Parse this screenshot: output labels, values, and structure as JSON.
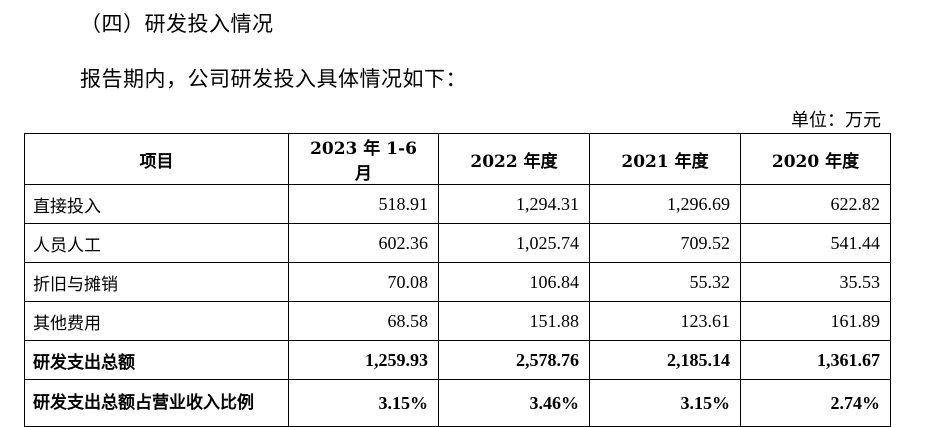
{
  "section_title": "（四）研发投入情况",
  "intro": "报告期内，公司研发投入具体情况如下：",
  "unit": "单位：万元",
  "table": {
    "headers": [
      "项目",
      "2023 年 1-6 月",
      "2022 年度",
      "2021 年度",
      "2020 年度"
    ],
    "rows": [
      {
        "label": "直接投入",
        "values": [
          "518.91",
          "1,294.31",
          "1,296.69",
          "622.82"
        ],
        "bold": false
      },
      {
        "label": "人员人工",
        "values": [
          "602.36",
          "1,025.74",
          "709.52",
          "541.44"
        ],
        "bold": false
      },
      {
        "label": "折旧与摊销",
        "values": [
          "70.08",
          "106.84",
          "55.32",
          "35.53"
        ],
        "bold": false
      },
      {
        "label": "其他费用",
        "values": [
          "68.58",
          "151.88",
          "123.61",
          "161.89"
        ],
        "bold": false
      },
      {
        "label": "研发支出总额",
        "values": [
          "1,259.93",
          "2,578.76",
          "2,185.14",
          "1,361.67"
        ],
        "bold": true
      },
      {
        "label": "研发支出总额占营业收入比例",
        "values": [
          "3.15%",
          "3.46%",
          "3.15%",
          "2.74%"
        ],
        "bold": true
      }
    ]
  }
}
